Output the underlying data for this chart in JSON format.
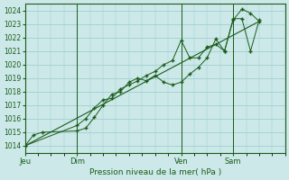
{
  "background_color": "#cce8e8",
  "plot_bg_color": "#cce8e8",
  "grid_color": "#99cccc",
  "line_color": "#1a5c1a",
  "marker_color": "#1a5c1a",
  "xlabel": "Pression niveau de la mer( hPa )",
  "ylim": [
    1013.5,
    1024.5
  ],
  "ytick_values": [
    1014,
    1015,
    1016,
    1017,
    1018,
    1019,
    1020,
    1021,
    1022,
    1023,
    1024
  ],
  "xtick_labels": [
    "Jeu",
    "Dim",
    "Ven",
    "Sam"
  ],
  "xtick_positions": [
    0,
    36,
    108,
    144
  ],
  "vline_positions": [
    0,
    36,
    108,
    144
  ],
  "xmax": 180,
  "series1_x": [
    0,
    6,
    12,
    36,
    42,
    48,
    54,
    60,
    66,
    72,
    78,
    84,
    90,
    96,
    102,
    108,
    114,
    120,
    126,
    132,
    138,
    144,
    150,
    156,
    162
  ],
  "series1_y": [
    1014.0,
    1014.8,
    1015.0,
    1015.1,
    1015.3,
    1016.1,
    1017.0,
    1017.8,
    1018.0,
    1018.7,
    1019.0,
    1018.8,
    1019.2,
    1018.7,
    1018.5,
    1018.7,
    1019.3,
    1019.8,
    1020.5,
    1021.9,
    1021.0,
    1023.4,
    1023.4,
    1021.0,
    1023.3
  ],
  "series2_x": [
    0,
    36,
    42,
    48,
    54,
    60,
    66,
    72,
    78,
    84,
    90,
    96,
    102,
    108,
    114,
    120,
    126,
    132,
    138,
    144,
    150,
    156,
    162
  ],
  "series2_y": [
    1014.0,
    1015.5,
    1016.0,
    1016.8,
    1017.4,
    1017.5,
    1018.2,
    1018.5,
    1018.8,
    1019.2,
    1019.5,
    1020.0,
    1020.3,
    1021.8,
    1020.5,
    1020.5,
    1021.3,
    1021.5,
    1021.0,
    1023.3,
    1024.1,
    1023.8,
    1023.2
  ],
  "trend_x": [
    0,
    162
  ],
  "trend_y": [
    1014.0,
    1023.2
  ]
}
